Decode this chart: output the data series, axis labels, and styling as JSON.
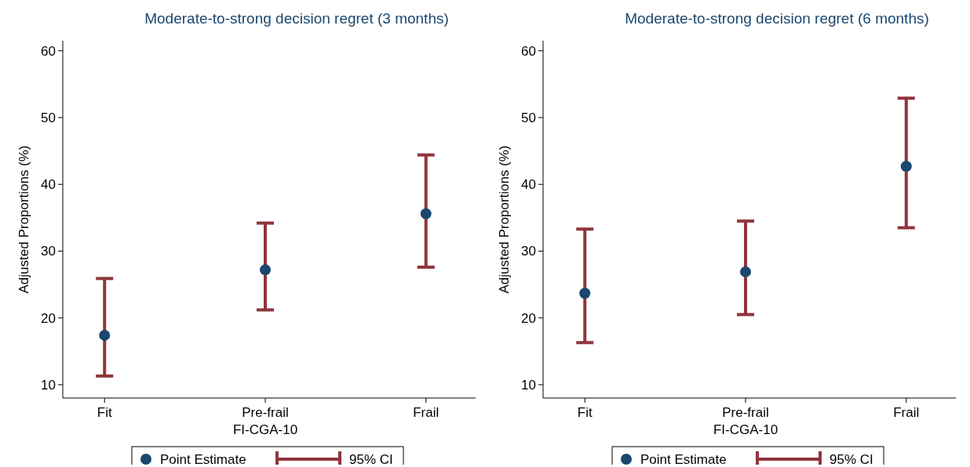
{
  "chart_data": [
    {
      "type": "scatter",
      "title": "Moderate-to-strong decision regret (3 months)",
      "xlabel": "FI-CGA-10",
      "ylabel": "Adjusted Proportions (%)",
      "categories": [
        "Fit",
        "Pre-frail",
        "Frail"
      ],
      "ylim": [
        8,
        61.5
      ],
      "yticks": [
        10,
        20,
        30,
        40,
        50,
        60
      ],
      "grid": false,
      "legend": "bottom",
      "marker": "circle",
      "series": [
        {
          "name": "Point Estimate",
          "color": "#1a476f",
          "values": [
            17.4,
            27.2,
            35.6
          ],
          "errors": [
            [
              11.3,
              25.9
            ],
            [
              21.2,
              34.2
            ],
            [
              27.6,
              44.4
            ]
          ]
        },
        {
          "name": "95% CI",
          "color": "#90353b",
          "marker": "none",
          "values": [
            null,
            null,
            null
          ]
        }
      ]
    },
    {
      "type": "scatter",
      "title": "Moderate-to-strong decision regret (6 months)",
      "xlabel": "FI-CGA-10",
      "ylabel": "Adjusted Proportions (%)",
      "categories": [
        "Fit",
        "Pre-frail",
        "Frail"
      ],
      "ylim": [
        8,
        61.5
      ],
      "yticks": [
        10,
        20,
        30,
        40,
        50,
        60
      ],
      "grid": false,
      "legend": "bottom",
      "marker": "circle",
      "series": [
        {
          "name": "Point Estimate",
          "color": "#1a476f",
          "values": [
            23.7,
            26.9,
            42.7
          ],
          "errors": [
            [
              16.3,
              33.3
            ],
            [
              20.5,
              34.5
            ],
            [
              33.5,
              52.9
            ]
          ]
        },
        {
          "name": "95% CI",
          "color": "#90353b",
          "marker": "none",
          "values": [
            null,
            null,
            null
          ]
        }
      ]
    }
  ]
}
